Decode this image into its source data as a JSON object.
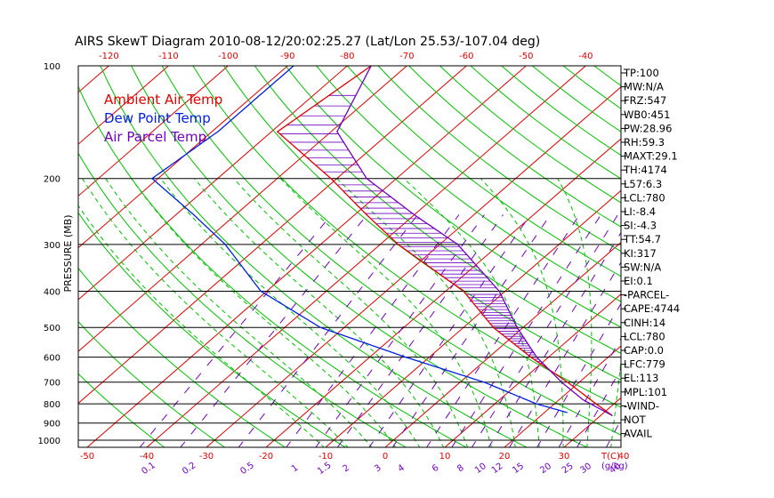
{
  "chart_data": {
    "type": "line",
    "title": "AIRS SkewT Diagram 2010-08-12/20:02:25.27 (Lat/Lon 25.53/-107.04 deg)",
    "ylabel": "PRESSURE (MB)",
    "xlabel": "T(C)",
    "mixing_ratio_unit": "(g/kg)",
    "ylim": [
      1000,
      100
    ],
    "top_temperature_ticks": [
      -120,
      -110,
      -100,
      -90,
      -80,
      -70,
      -60,
      -50,
      -40
    ],
    "bottom_temperature_ticks": [
      -50,
      -40,
      -30,
      -20,
      -10,
      0,
      10,
      20,
      30,
      40
    ],
    "pressure_ticks": [
      100,
      200,
      300,
      400,
      500,
      600,
      700,
      800,
      900,
      1000
    ],
    "mixing_ratio_ticks": [
      "0.1",
      "0.2",
      "0.5",
      "1",
      "1.5",
      "2",
      "3",
      "4",
      "6",
      "8",
      "10",
      "12",
      "15",
      "20",
      "25",
      "30",
      "40"
    ],
    "legend": [
      {
        "name": "Ambient Air Temp",
        "color": "#e00000"
      },
      {
        "name": "Dew Point Temp",
        "color": "#0020e0"
      },
      {
        "name": "Air Parcel Temp",
        "color": "#7000c0"
      }
    ],
    "series": [
      {
        "name": "Ambient Air Temp",
        "color": "#e00000",
        "points": [
          [
            100,
            -76
          ],
          [
            150,
            -79
          ],
          [
            200,
            -61
          ],
          [
            250,
            -48
          ],
          [
            300,
            -37
          ],
          [
            400,
            -17
          ],
          [
            500,
            -5
          ],
          [
            600,
            7
          ],
          [
            700,
            18
          ],
          [
            800,
            27
          ],
          [
            860,
            32
          ]
        ]
      },
      {
        "name": "Dew Point Temp",
        "color": "#0020e0",
        "points": [
          [
            100,
            -89
          ],
          [
            150,
            -89
          ],
          [
            200,
            -91
          ],
          [
            250,
            -77
          ],
          [
            300,
            -66
          ],
          [
            400,
            -51
          ],
          [
            500,
            -34
          ],
          [
            600,
            -14
          ],
          [
            700,
            4
          ],
          [
            800,
            17
          ],
          [
            845,
            24
          ]
        ]
      },
      {
        "name": "Air Parcel Temp",
        "color": "#7000c0",
        "points": [
          [
            100,
            -76
          ],
          [
            150,
            -69
          ],
          [
            200,
            -55
          ],
          [
            250,
            -40
          ],
          [
            300,
            -27
          ],
          [
            400,
            -11
          ],
          [
            500,
            -1
          ],
          [
            600,
            8
          ],
          [
            700,
            17
          ],
          [
            780,
            24
          ],
          [
            860,
            32
          ]
        ]
      }
    ],
    "indices": [
      "TP:100",
      "MW:N/A",
      "FRZ:547",
      "WB0:451",
      "PW:28.96",
      "RH:59.3",
      "MAXT:29.1",
      "TH:4174",
      "L57:6.3",
      "LCL:780",
      "LI:-8.4",
      "SI:-4.3",
      "TT:54.7",
      "KI:317",
      "SW:N/A",
      "EI:0.1",
      "-PARCEL-",
      "CAPE:4744",
      "CINH:14",
      "LCL:780",
      "CAP:0.0",
      "LFC:779",
      "EL:113",
      "MPL:101",
      "-WIND-",
      "NOT",
      "AVAIL"
    ],
    "colors": {
      "isotherm": "#e00000",
      "dry_adiabat": "#00c000",
      "moist_adiabat": "#00c000",
      "mixing_ratio": "#7000c0",
      "cape_hatch": "#7000c0",
      "isobar": "#000000"
    },
    "grid": true,
    "legend_position": "top-left"
  }
}
